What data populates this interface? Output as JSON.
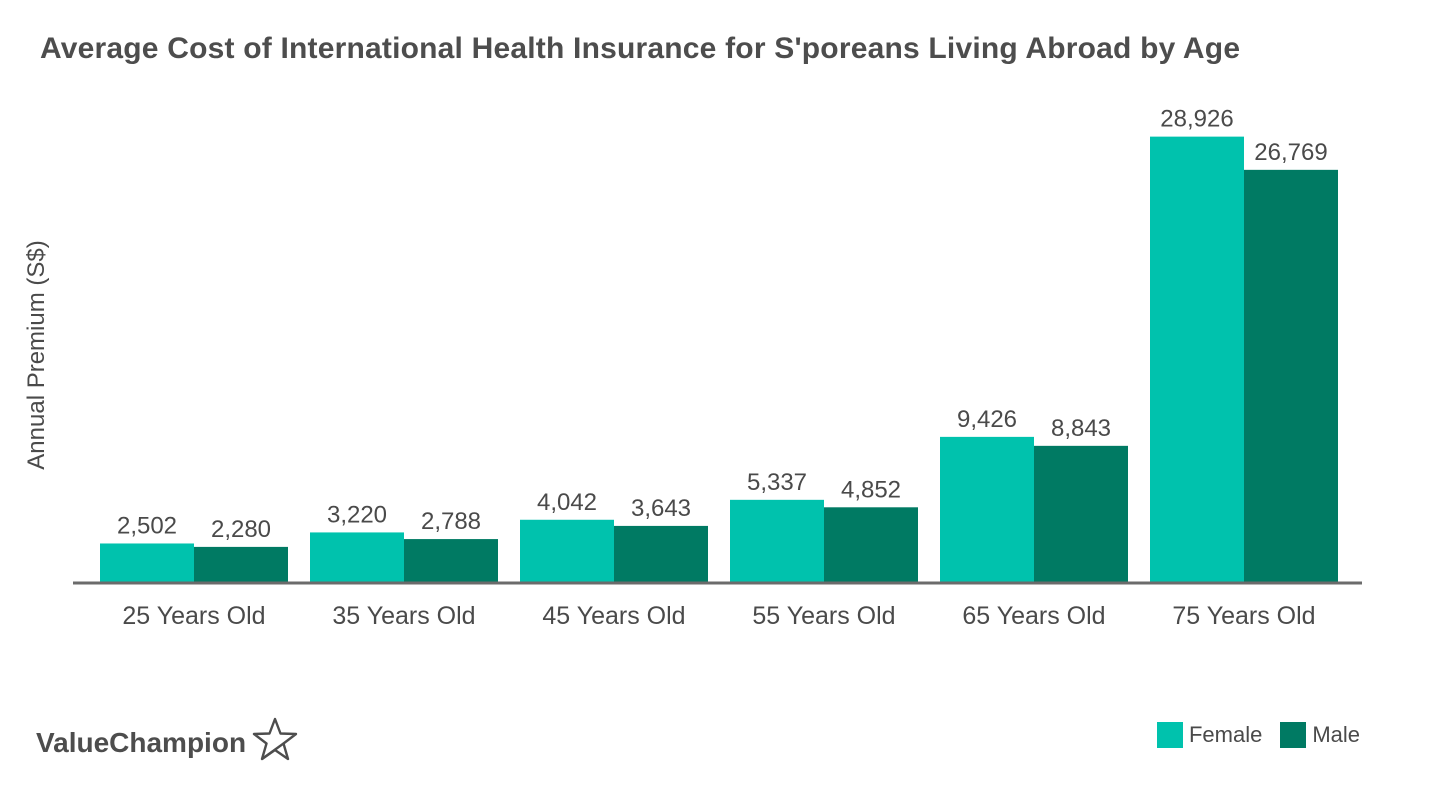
{
  "colors": {
    "female": "#00c2ad",
    "male": "#007a63",
    "axis": "#6b6b6b",
    "text": "#4a4a4a"
  },
  "brand": {
    "name": "ValueChampion",
    "icon": "star-outline-icon"
  },
  "chart_data": {
    "type": "bar",
    "title": "Average Cost of International Health Insurance for S'poreans Living Abroad by Age",
    "ylabel": "Annual Premium (S$)",
    "xlabel": "",
    "categories": [
      "25 Years Old",
      "35 Years Old",
      "45 Years Old",
      "55 Years Old",
      "65 Years Old",
      "75 Years Old"
    ],
    "series": [
      {
        "name": "Female",
        "values": [
          2502,
          3220,
          4042,
          5337,
          9426,
          28926
        ],
        "labels": [
          "2,502",
          "3,220",
          "4,042",
          "5,337",
          "9,426",
          "28,926"
        ]
      },
      {
        "name": "Male",
        "values": [
          2280,
          2788,
          3643,
          4852,
          8843,
          26769
        ],
        "labels": [
          "2,280",
          "2,788",
          "3,643",
          "4,852",
          "8,843",
          "26,769"
        ]
      }
    ],
    "ylim": [
      0,
      31500
    ],
    "grid": false,
    "legend_position": "bottom-right"
  }
}
